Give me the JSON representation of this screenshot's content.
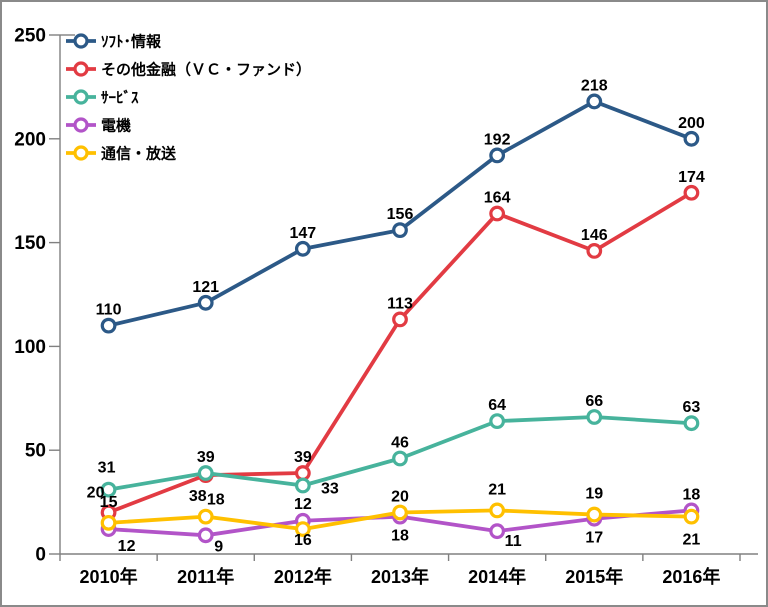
{
  "chart_data": {
    "type": "line",
    "title": "",
    "categories": [
      "2010年",
      "2011年",
      "2012年",
      "2013年",
      "2014年",
      "2015年",
      "2016年"
    ],
    "series": [
      {
        "id": "soft-info",
        "name": "ｿﾌﾄ･情報",
        "color": "#2C5987",
        "values": [
          110,
          121,
          147,
          156,
          192,
          218,
          200
        ],
        "label_side": "above",
        "label_offsets": {}
      },
      {
        "id": "other-finance-vc-fund",
        "name": "その他金融（ＶＣ・ファンド）",
        "color": "#E23B43",
        "values": [
          20,
          38,
          39,
          113,
          164,
          146,
          174
        ],
        "label_side": "above",
        "label_offsets": {
          "0": [
            -13,
            -15
          ],
          "1": [
            -8,
            26
          ]
        }
      },
      {
        "id": "services",
        "name": "ｻｰﾋﾞｽ",
        "color": "#47B39C",
        "values": [
          31,
          39,
          33,
          46,
          64,
          66,
          63
        ],
        "label_side": "above",
        "label_offsets": {
          "0": [
            -2,
            -17
          ],
          "2": [
            27,
            8
          ]
        }
      },
      {
        "id": "electronics",
        "name": "電機",
        "color": "#B254C8",
        "values": [
          12,
          9,
          16,
          18,
          11,
          17,
          21
        ],
        "label_side": "below",
        "label_offsets": {
          "0": [
            18,
            22
          ],
          "1": [
            13,
            16
          ],
          "4": [
            16,
            15
          ],
          "6": [
            0,
            34
          ]
        }
      },
      {
        "id": "telecom-broadcast",
        "name": "通信・放送",
        "color": "#FFC000",
        "values": [
          15,
          18,
          12,
          20,
          21,
          19,
          18
        ],
        "label_side": "above",
        "label_offsets": {
          "0": [
            0,
            -16
          ],
          "1": [
            10,
            -12
          ],
          "2": [
            0,
            -20
          ],
          "4": [
            0,
            -16
          ],
          "5": [
            0,
            -16
          ],
          "6": [
            0,
            -17
          ]
        }
      }
    ],
    "xlabel": "",
    "ylabel": "",
    "ylim": [
      0,
      250
    ],
    "ytick_step": 50,
    "yticks": [
      0,
      50,
      100,
      150,
      200,
      250
    ],
    "grid": false,
    "legend_position": "top-left-inside",
    "axis_color": "#808080",
    "data_label_color": "#000000",
    "marker_style": "open-circle"
  }
}
